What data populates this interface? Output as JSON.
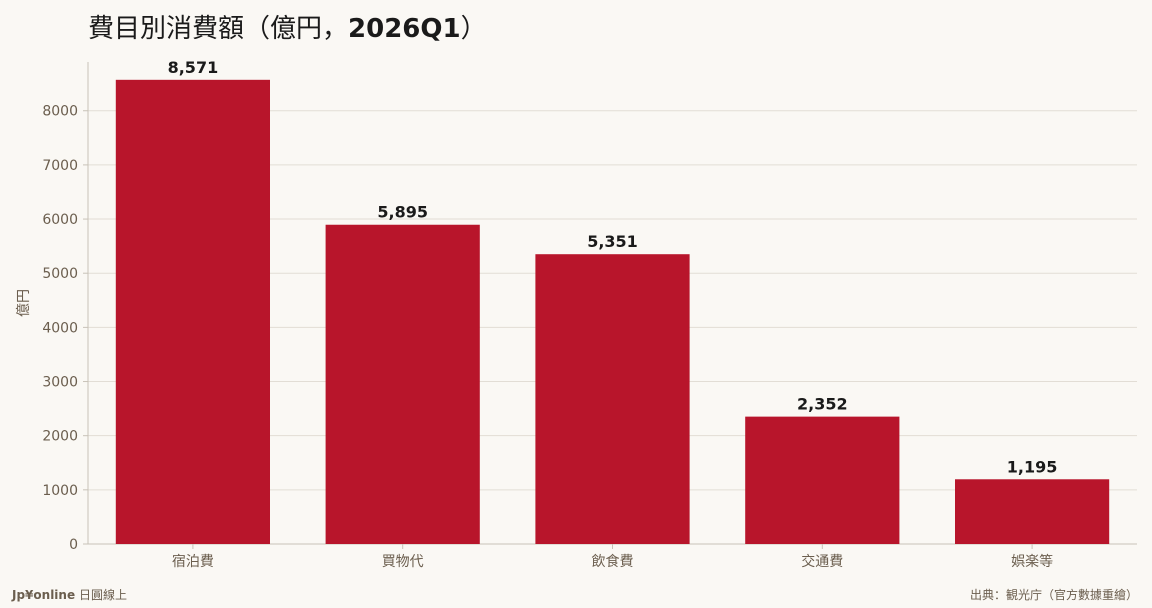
{
  "header": {
    "title_main": "費目別消費額（億円，",
    "title_bold": "2026Q1",
    "title_end": "）"
  },
  "footer": {
    "brand": "Jp¥online",
    "brand_suffix": "日圓線上",
    "source": "出典：観光庁（官方數據重繪）"
  },
  "colors": {
    "bar": "#b8152b",
    "grid": "#e2ddd5",
    "axis": "#c8c2b8",
    "tick_text": "#6b5e4e",
    "label_text": "#1a1a1a"
  },
  "chart_data": {
    "type": "bar",
    "title": "費目別消費額（億円，2026Q1）",
    "categories": [
      "宿泊費",
      "買物代",
      "飲食費",
      "交通費",
      "娯楽等"
    ],
    "values": [
      8571,
      5895,
      5351,
      2352,
      1195
    ],
    "value_labels": [
      "8,571",
      "5,895",
      "5,351",
      "2,352",
      "1,195"
    ],
    "xlabel": "",
    "ylabel": "億円",
    "ylim": [
      0,
      8900
    ],
    "yticks": [
      0,
      1000,
      2000,
      3000,
      4000,
      5000,
      6000,
      7000,
      8000
    ],
    "grid": true
  }
}
